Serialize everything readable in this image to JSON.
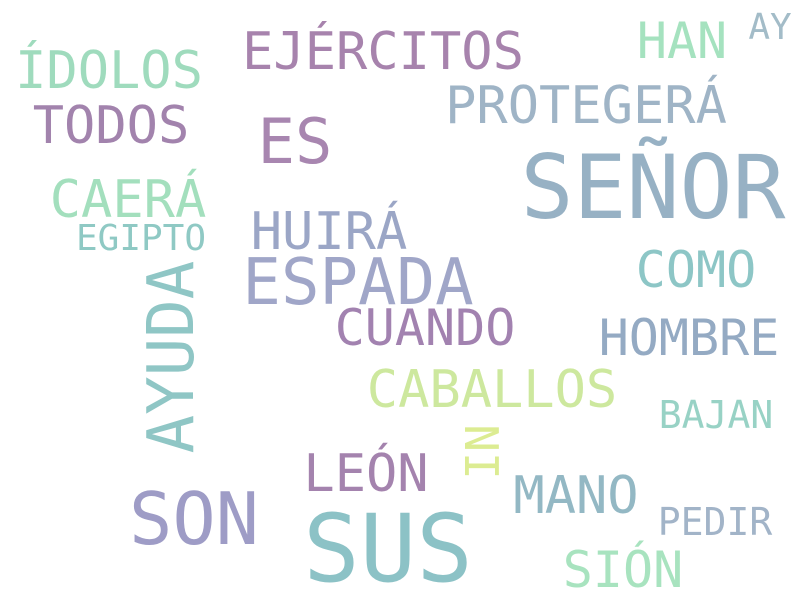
{
  "words": [
    {
      "text": "SEÑOR",
      "color": "#97b1c4"
    },
    {
      "text": "SUS",
      "color": "#8cc2c6"
    },
    {
      "text": "SON",
      "color": "#9e9cc6"
    },
    {
      "text": "ESPADA",
      "color": "#a0a6c8"
    },
    {
      "text": "AYUDA",
      "color": "#8fc6c5"
    },
    {
      "text": "ES",
      "color": "#a886b0"
    },
    {
      "text": "EJÉRCITOS",
      "color": "#a783ad"
    },
    {
      "text": "ÍDOLOS",
      "color": "#9fdbbd"
    },
    {
      "text": "HAN",
      "color": "#a5e2bf"
    },
    {
      "text": "AY",
      "color": "#a3bcc8"
    },
    {
      "text": "TODOS",
      "color": "#a283ad"
    },
    {
      "text": "PROTEGERÁ",
      "color": "#9fb4c6"
    },
    {
      "text": "CAERÁ",
      "color": "#a3dfbd"
    },
    {
      "text": "EGIPTO",
      "color": "#8fc9c4"
    },
    {
      "text": "HUIRÁ",
      "color": "#9ba6c6"
    },
    {
      "text": "COMO",
      "color": "#8dc6c6"
    },
    {
      "text": "CUANDO",
      "color": "#a282b0"
    },
    {
      "text": "HOMBRE",
      "color": "#94aac3"
    },
    {
      "text": "CABALLOS",
      "color": "#cde89e"
    },
    {
      "text": "BAJAN",
      "color": "#98d2c5"
    },
    {
      "text": "NI",
      "color": "#dcec92"
    },
    {
      "text": "LEÓN",
      "color": "#a483ae"
    },
    {
      "text": "MANO",
      "color": "#93b8c4"
    },
    {
      "text": "PEDIR",
      "color": "#a2b4c8"
    },
    {
      "text": "SIÓN",
      "color": "#a8e3bf"
    }
  ]
}
